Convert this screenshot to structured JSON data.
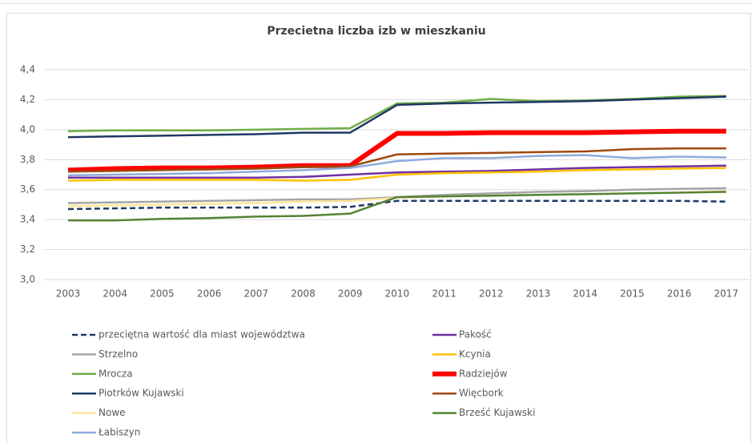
{
  "chart_data": {
    "type": "line",
    "title": "Przecietna liczba izb w mieszkaniu",
    "categories": [
      "2003",
      "2004",
      "2005",
      "2006",
      "2007",
      "2008",
      "2009",
      "2010",
      "2011",
      "2012",
      "2013",
      "2014",
      "2015",
      "2016",
      "2017"
    ],
    "ylim": [
      3.0,
      4.4
    ],
    "yticks": [
      {
        "value": 3.0,
        "label": "3,0"
      },
      {
        "value": 3.2,
        "label": "3,2"
      },
      {
        "value": 3.4,
        "label": "3,4"
      },
      {
        "value": 3.6,
        "label": "3,6"
      },
      {
        "value": 3.8,
        "label": "3,8"
      },
      {
        "value": 4.0,
        "label": "4,0"
      },
      {
        "value": 4.2,
        "label": "4,2"
      },
      {
        "value": 4.4,
        "label": "4,4"
      }
    ],
    "grid": true,
    "legend": "bottom",
    "series": [
      {
        "name": "przeciętna wartość dla miast województwa",
        "color": "#1f3864",
        "dashed": true,
        "values": [
          3.47,
          3.475,
          3.48,
          3.48,
          3.48,
          3.48,
          3.485,
          3.525,
          3.525,
          3.525,
          3.525,
          3.525,
          3.525,
          3.525,
          3.52
        ]
      },
      {
        "name": "Pakość",
        "color": "#7030a0",
        "values": [
          3.68,
          3.68,
          3.68,
          3.68,
          3.68,
          3.685,
          3.7,
          3.715,
          3.72,
          3.725,
          3.735,
          3.745,
          3.75,
          3.755,
          3.76
        ]
      },
      {
        "name": "Strzelno",
        "color": "#a5a5a5",
        "values": [
          3.51,
          3.515,
          3.52,
          3.525,
          3.53,
          3.535,
          3.535,
          3.55,
          3.565,
          3.575,
          3.585,
          3.59,
          3.6,
          3.605,
          3.61
        ]
      },
      {
        "name": "Kcynia",
        "color": "#ffc000",
        "values": [
          3.66,
          3.665,
          3.665,
          3.665,
          3.665,
          3.66,
          3.665,
          3.7,
          3.71,
          3.715,
          3.72,
          3.73,
          3.735,
          3.74,
          3.745
        ]
      },
      {
        "name": "Mrocza",
        "color": "#70ad47",
        "values": [
          3.99,
          3.995,
          3.995,
          3.995,
          4.0,
          4.005,
          4.01,
          4.175,
          4.18,
          4.205,
          4.19,
          4.195,
          4.205,
          4.22,
          4.225
        ]
      },
      {
        "name": "Radziejów",
        "color": "#ff0000",
        "bold": true,
        "values": [
          3.73,
          3.74,
          3.745,
          3.745,
          3.75,
          3.76,
          3.76,
          3.975,
          3.975,
          3.98,
          3.98,
          3.98,
          3.985,
          3.99,
          3.99
        ]
      },
      {
        "name": "Piotrków Kujawski",
        "color": "#203864",
        "values": [
          3.95,
          3.955,
          3.96,
          3.965,
          3.97,
          3.98,
          3.98,
          4.165,
          4.175,
          4.18,
          4.185,
          4.19,
          4.2,
          4.21,
          4.22
        ]
      },
      {
        "name": "Więcbork",
        "color": "#9e480e",
        "values": [
          3.72,
          3.725,
          3.73,
          3.735,
          3.74,
          3.75,
          3.755,
          3.835,
          3.84,
          3.845,
          3.85,
          3.855,
          3.87,
          3.875,
          3.875
        ]
      },
      {
        "name": "Nowe",
        "color": "#ffe699",
        "values": [
          3.49,
          3.495,
          3.5,
          3.505,
          3.51,
          3.52,
          3.525,
          3.545,
          3.555,
          3.56,
          3.565,
          3.57,
          3.575,
          3.58,
          3.59
        ]
      },
      {
        "name": "Brześć Kujawski",
        "color": "#548235",
        "values": [
          3.395,
          3.395,
          3.405,
          3.41,
          3.42,
          3.425,
          3.44,
          3.55,
          3.555,
          3.56,
          3.565,
          3.57,
          3.575,
          3.58,
          3.585
        ]
      },
      {
        "name": "Łabiszyn",
        "color": "#8faadc",
        "values": [
          3.695,
          3.7,
          3.705,
          3.71,
          3.72,
          3.73,
          3.745,
          3.79,
          3.81,
          3.81,
          3.825,
          3.83,
          3.81,
          3.82,
          3.815
        ]
      }
    ]
  }
}
